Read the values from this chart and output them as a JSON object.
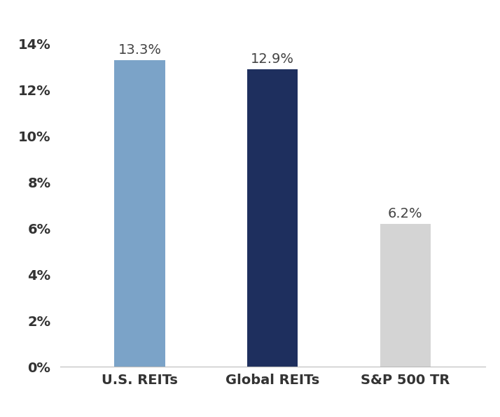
{
  "categories": [
    "U.S. REITs",
    "Global REITs",
    "S&P 500 TR"
  ],
  "values": [
    13.3,
    12.9,
    6.2
  ],
  "labels": [
    "13.3%",
    "12.9%",
    "6.2%"
  ],
  "bar_colors": [
    "#7ba3c8",
    "#1e2f5e",
    "#d4d4d4"
  ],
  "ylim": [
    0,
    15
  ],
  "yticks": [
    0,
    2,
    4,
    6,
    8,
    10,
    12,
    14
  ],
  "ytick_labels": [
    "0%",
    "2%",
    "4%",
    "6%",
    "8%",
    "10%",
    "12%",
    "14%"
  ],
  "bar_width": 0.38,
  "label_fontsize": 14,
  "tick_fontsize": 14,
  "xtick_fontsize": 14,
  "background_color": "#ffffff",
  "label_color": "#444444",
  "tick_color": "#333333"
}
